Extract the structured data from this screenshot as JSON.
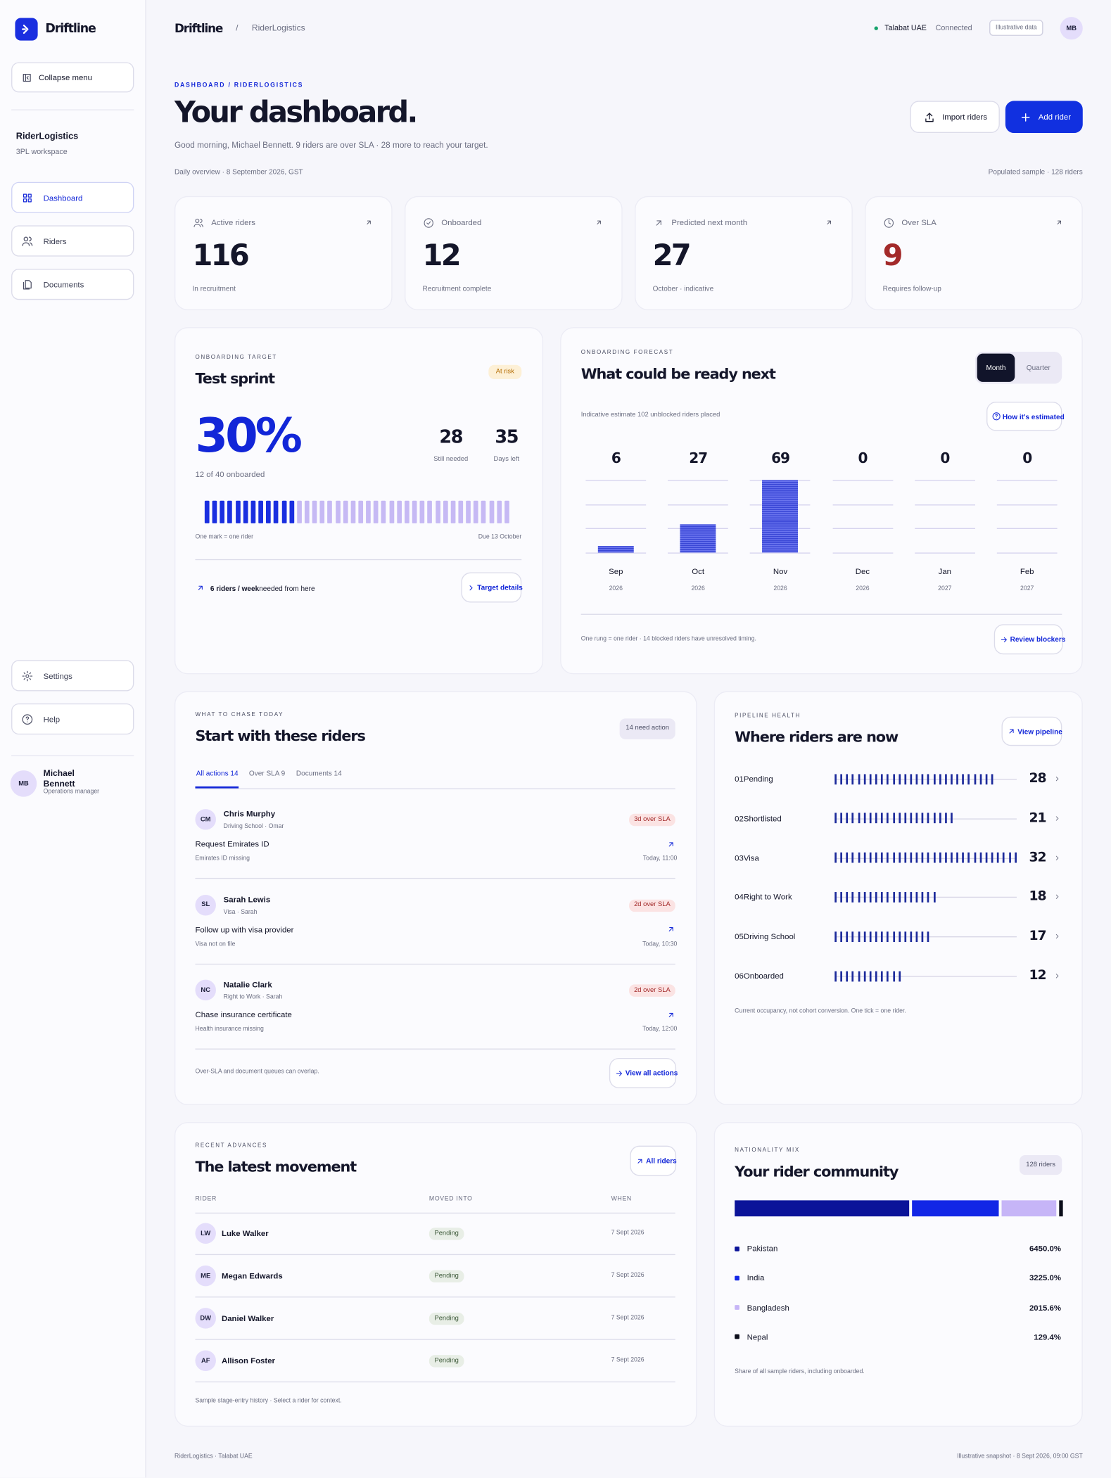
{
  "sidebar": {
    "brand": "Driftline",
    "collapse": "Collapse menu",
    "workspace": "RiderLogistics",
    "workspace_sub": "3PL workspace",
    "nav": [
      "Dashboard",
      "Riders",
      "Documents"
    ],
    "bottom_nav": [
      "Settings",
      "Help"
    ],
    "user": {
      "initials": "MB",
      "name": "Michael Bennett",
      "role": "Operations manager"
    }
  },
  "topbar": {
    "brand": "Driftline",
    "separator": "/",
    "crumb": "RiderLogistics",
    "status": "Talabat UAE",
    "status_note": "Connected",
    "badge": "Illustrative data",
    "avatar": "MB"
  },
  "header": {
    "eyebrow": "DASHBOARD / RIDERLOGISTICS",
    "title": "Your dashboard.",
    "greeting": "Good morning, Michael Bennett. 9 riders are over SLA · 28 more to reach your target.",
    "buttons": [
      "Import riders",
      "Add rider"
    ],
    "meta_left": "Daily overview · 8 September 2026, GST",
    "meta_right": "Populated sample · 128 riders"
  },
  "kpis": [
    {
      "label": "Active riders",
      "value": 116,
      "note": "In recruitment"
    },
    {
      "label": "Onboarded",
      "value": 12,
      "note": "Recruitment complete"
    },
    {
      "label": "Predicted next month",
      "value": 27,
      "note": "October · indicative"
    },
    {
      "label": "Over SLA",
      "value": 9,
      "note": "Requires follow-up"
    }
  ],
  "sprint": {
    "eyebrow": "ONBOARDING TARGET",
    "title": "Test sprint",
    "badge": "At risk",
    "percent": "30%",
    "caption": "12 of 40 onboarded",
    "onboarded": 12,
    "target": 40,
    "stats": [
      {
        "value": 28,
        "label": "Still needed"
      },
      {
        "value": 35,
        "label": "Days left"
      }
    ],
    "legend_left": "One mark = one rider",
    "legend_right": "Due 13 October",
    "footer_strong": "6 riders / week",
    "footer_text": "needed from here",
    "link": "Target details"
  },
  "forecast": {
    "eyebrow": "ONBOARDING FORECAST",
    "title": "What could be ready next",
    "toggle": [
      "Month",
      "Quarter"
    ],
    "note": "Indicative estimate 102 unblocked riders placed",
    "link": "How it's estimated",
    "chart": {
      "type": "bar",
      "categories": [
        "Sep",
        "Oct",
        "Nov",
        "Dec",
        "Jan",
        "Feb"
      ],
      "years": [
        "2026",
        "2026",
        "2026",
        "2026",
        "2027",
        "2027"
      ],
      "values": [
        6,
        27,
        69,
        0,
        0,
        0
      ],
      "color": "#3a47d6"
    },
    "footnote": "One rung = one rider · 14 blocked riders have unresolved timing.",
    "link2": "Review blockers"
  },
  "chase": {
    "eyebrow": "WHAT TO CHASE TODAY",
    "title": "Start with these riders",
    "badge": "14 need action",
    "tabs": [
      "All actions 14",
      "Over SLA 9",
      "Documents 14"
    ],
    "items": [
      {
        "initials": "CM",
        "name": "Chris Murphy",
        "meta": "Driving School · Omar",
        "sla": "3d over SLA",
        "task": "Request Emirates ID",
        "detail": "Emirates ID missing",
        "time": "Today, 11:00"
      },
      {
        "initials": "SL",
        "name": "Sarah Lewis",
        "meta": "Visa · Sarah",
        "sla": "2d over SLA",
        "task": "Follow up with visa provider",
        "detail": "Visa not on file",
        "time": "Today, 10:30"
      },
      {
        "initials": "NC",
        "name": "Natalie Clark",
        "meta": "Right to Work · Sarah",
        "sla": "2d over SLA",
        "task": "Chase insurance certificate",
        "detail": "Health insurance missing",
        "time": "Today, 12:00"
      }
    ],
    "footnote": "Over-SLA and document queues can overlap.",
    "link": "View all actions"
  },
  "pipeline": {
    "eyebrow": "PIPELINE HEALTH",
    "title": "Where riders are now",
    "link": "View pipeline",
    "color": "#1c2a9b",
    "stages": [
      {
        "index": "01",
        "name": "Pending",
        "value": 28
      },
      {
        "index": "02",
        "name": "Shortlisted",
        "value": 21
      },
      {
        "index": "03",
        "name": "Visa",
        "value": 32
      },
      {
        "index": "04",
        "name": "Right to Work",
        "value": 18
      },
      {
        "index": "05",
        "name": "Driving School",
        "value": 17
      },
      {
        "index": "06",
        "name": "Onboarded",
        "value": 12
      }
    ],
    "footnote": "Current occupancy, not cohort conversion. One tick = one rider."
  },
  "movement": {
    "eyebrow": "RECENT ADVANCES",
    "title": "The latest movement",
    "link": "All riders",
    "columns": [
      "RIDER",
      "MOVED INTO",
      "WHEN"
    ],
    "rows": [
      {
        "initials": "LW",
        "name": "Luke Walker",
        "stage": "Pending",
        "when": "7 Sept 2026"
      },
      {
        "initials": "ME",
        "name": "Megan Edwards",
        "stage": "Pending",
        "when": "7 Sept 2026"
      },
      {
        "initials": "DW",
        "name": "Daniel Walker",
        "stage": "Pending",
        "when": "7 Sept 2026"
      },
      {
        "initials": "AF",
        "name": "Allison Foster",
        "stage": "Pending",
        "when": "7 Sept 2026"
      }
    ],
    "footnote": "Sample stage-entry history · Select a rider for context."
  },
  "nationality": {
    "eyebrow": "NATIONALITY MIX",
    "title": "Your rider community",
    "badge": "128 riders",
    "series": [
      {
        "name": "Pakistan",
        "color": "#0b1399",
        "value": 6450.0,
        "value_label": "6450.0%"
      },
      {
        "name": "India",
        "color": "#1226e6",
        "value": 3225.0,
        "value_label": "3225.0%"
      },
      {
        "name": "Bangladesh",
        "color": "#c6b5f7",
        "value": 2015.6,
        "value_label": "2015.6%"
      },
      {
        "name": "Nepal",
        "color": "#0b0d1a",
        "value": 129.4,
        "value_label": "129.4%"
      }
    ],
    "footnote": "Share of all sample riders, including onboarded."
  },
  "footer": {
    "left": "RiderLogistics · Talabat UAE",
    "right": "Illustrative snapshot · 8 Sept 2026, 09:00 GST"
  }
}
